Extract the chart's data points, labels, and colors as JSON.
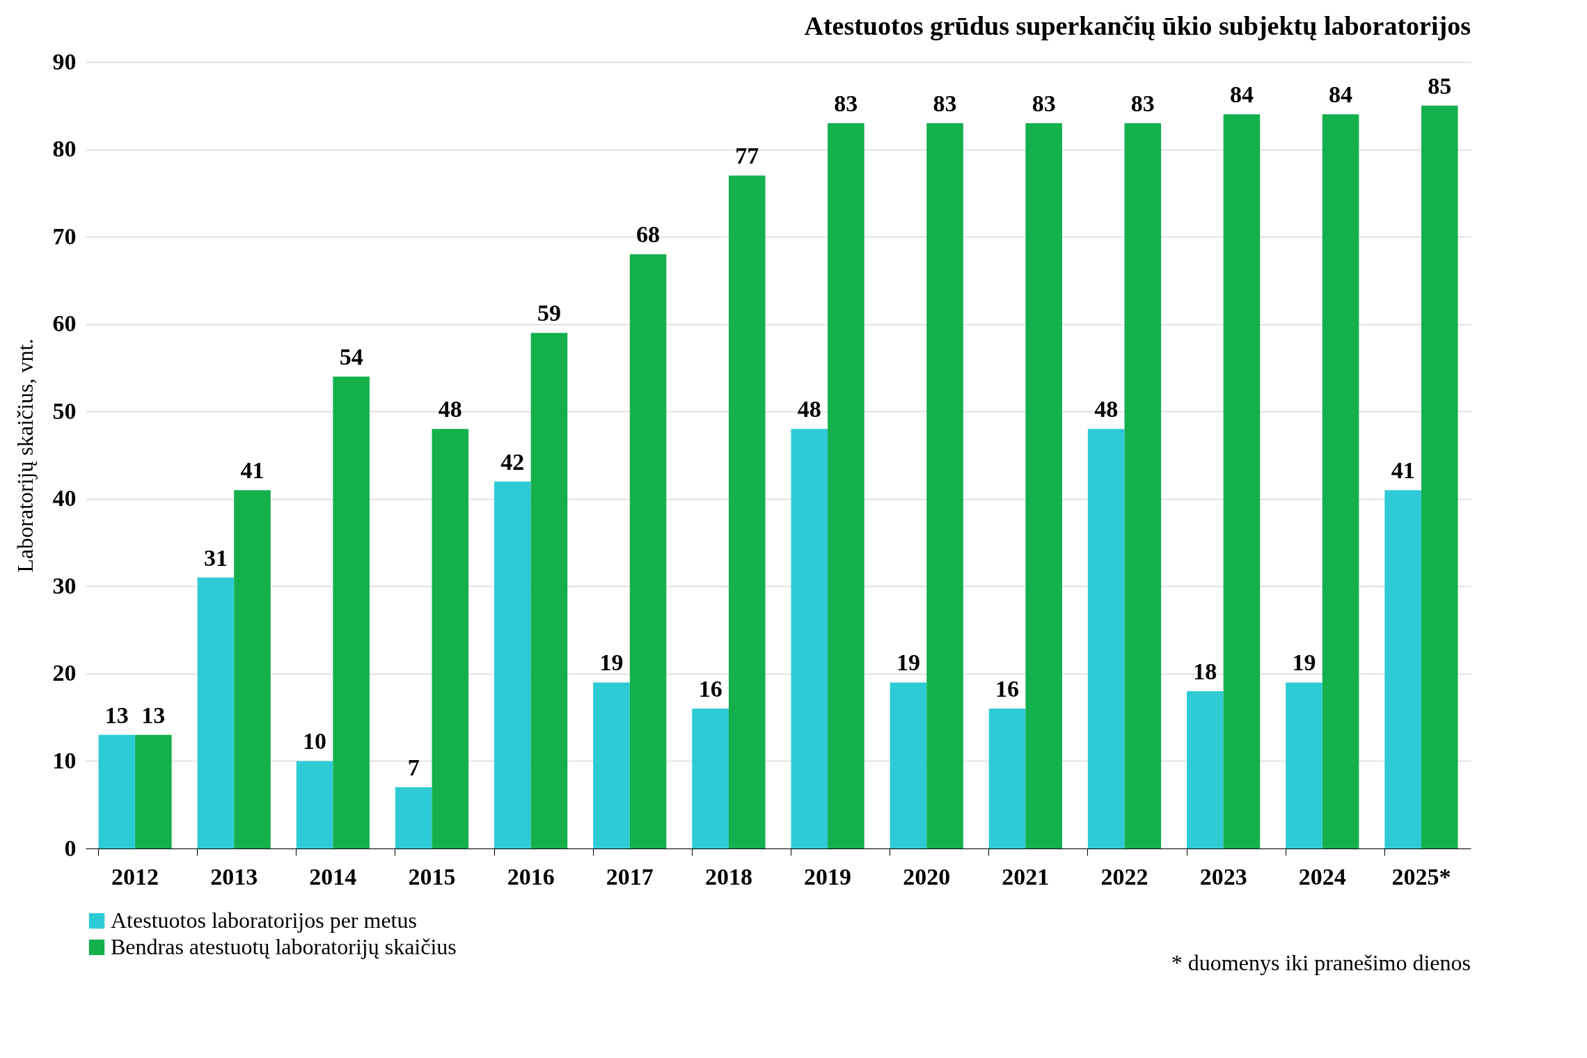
{
  "chart_data": {
    "type": "bar",
    "title": "Atestuotos grūdus superkančių ūkio subjektų laboratorijos",
    "ylabel": "Laboratorijų skaičius, vnt.",
    "categories": [
      "2012",
      "2013",
      "2014",
      "2015",
      "2016",
      "2017",
      "2018",
      "2019",
      "2020",
      "2021",
      "2022",
      "2023",
      "2024",
      "2025*"
    ],
    "series": [
      {
        "name": "Atestuotos laboratorijos per metus",
        "color": "#2ecbd6",
        "values": [
          13,
          31,
          10,
          7,
          42,
          19,
          16,
          48,
          19,
          16,
          48,
          18,
          19,
          41
        ]
      },
      {
        "name": "Bendras atestuotų laboratorijų skaičius",
        "color": "#14b04c",
        "values": [
          13,
          41,
          54,
          48,
          59,
          68,
          77,
          83,
          83,
          83,
          83,
          84,
          84,
          85
        ]
      }
    ],
    "ylim": [
      0,
      90
    ],
    "yticks": [
      0,
      10,
      20,
      30,
      40,
      50,
      60,
      70,
      80,
      90
    ],
    "grid": "y",
    "legend": "bottom left",
    "data_labels": true,
    "annotations": [
      "* duomenys iki pranešimo dienos"
    ]
  }
}
